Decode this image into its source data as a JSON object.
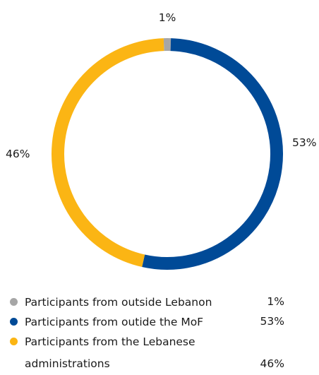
{
  "chart_data": {
    "type": "pie",
    "variant": "donut",
    "slices": [
      {
        "label": "Participants from outside Lebanon",
        "value": 1,
        "value_label": "1%",
        "color": "#a6a6a6"
      },
      {
        "label": "Participants from outide the MoF",
        "value": 53,
        "value_label": "53%",
        "color": "#004a97"
      },
      {
        "label": "Participants from the Lebanese administrations",
        "value": 46,
        "value_label": "46%",
        "color": "#fbb514"
      }
    ],
    "legend_position": "bottom"
  }
}
